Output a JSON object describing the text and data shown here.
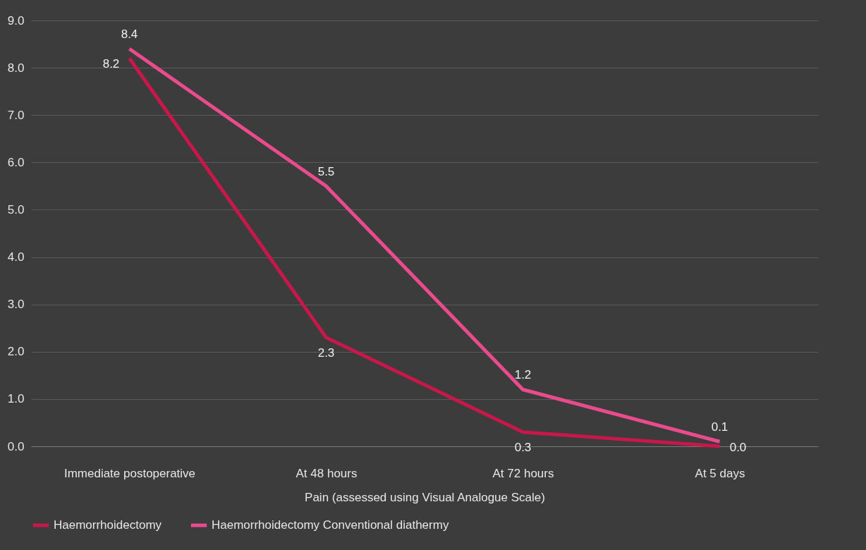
{
  "chart_data": {
    "type": "line",
    "xlabel": "Pain (assessed using Visual Analogue Scale)",
    "categories": [
      "Immediate postoperative",
      "At 48 hours",
      "At 72 hours",
      "At 5 days"
    ],
    "series": [
      {
        "name": "Haemorrhoidectomy",
        "color": "#c8174a",
        "values": [
          8.2,
          2.3,
          0.3,
          0.0
        ],
        "value_labels": [
          "8.2",
          "2.3",
          "0.3",
          "0.0"
        ]
      },
      {
        "name": "Haemorrhoidectomy Conventional diathermy",
        "color": "#e94b8c",
        "values": [
          8.4,
          5.5,
          1.2,
          0.1
        ],
        "value_labels": [
          "8.4",
          "5.5",
          "1.2",
          "0.1"
        ]
      }
    ],
    "ylim": [
      0,
      9
    ],
    "yticks": [
      {
        "value": 0,
        "label": "0.0"
      },
      {
        "value": 1,
        "label": "1.0"
      },
      {
        "value": 2,
        "label": "2.0"
      },
      {
        "value": 3,
        "label": "3.0"
      },
      {
        "value": 4,
        "label": "4.0"
      },
      {
        "value": 5,
        "label": "5.0"
      },
      {
        "value": 6,
        "label": "6.0"
      },
      {
        "value": 7,
        "label": "7.0"
      },
      {
        "value": 8,
        "label": "8.0"
      },
      {
        "value": 9,
        "label": "9.0"
      }
    ],
    "grid": "y",
    "legend": "bottom",
    "marker": "none",
    "line_style": "solid"
  }
}
